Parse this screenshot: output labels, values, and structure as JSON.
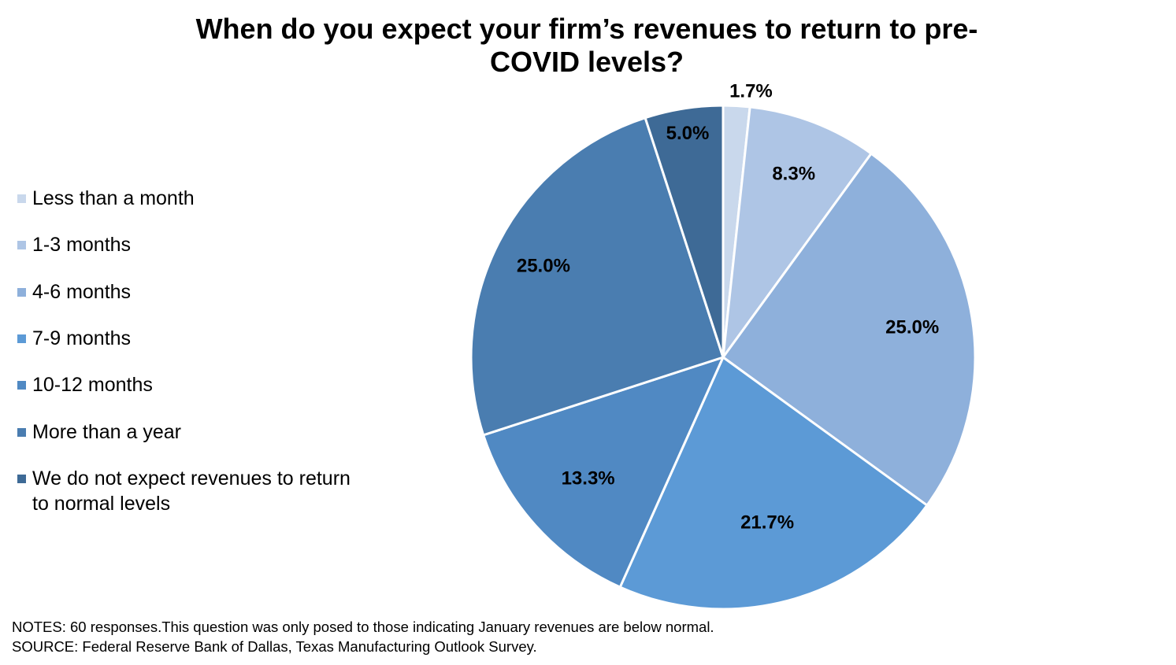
{
  "chart_data": {
    "type": "pie",
    "title": "When do you expect your firm’s revenues to return to pre-COVID levels?",
    "title_lines": [
      "When do you expect your firm’s revenues to return to pre-",
      "COVID levels?"
    ],
    "categories": [
      "Less than a month",
      "1-3 months",
      "4-6 months",
      "7-9 months",
      "10-12 months",
      "More than a year",
      "We do not expect revenues to return to normal levels"
    ],
    "values": [
      1.7,
      8.3,
      25.0,
      21.7,
      13.3,
      25.0,
      5.0
    ],
    "value_labels": [
      "1.7%",
      "8.3%",
      "25.0%",
      "21.7%",
      "13.3%",
      "25.0%",
      "5.0%"
    ],
    "colors": [
      "#C9D8EC",
      "#AEC5E5",
      "#8EB0DB",
      "#5C9AD6",
      "#5089C3",
      "#4A7DB0",
      "#3E6A96"
    ],
    "legend_position": "left",
    "start_angle": "12 o'clock",
    "direction": "clockwise"
  },
  "legend": {
    "items": [
      {
        "lines": [
          "Less than a month"
        ]
      },
      {
        "lines": [
          "1-3 months"
        ]
      },
      {
        "lines": [
          "4-6 months"
        ]
      },
      {
        "lines": [
          "7-9 months"
        ]
      },
      {
        "lines": [
          "10-12 months"
        ]
      },
      {
        "lines": [
          "More than a year"
        ]
      },
      {
        "lines": [
          "We do not expect revenues to return",
          "to normal levels"
        ]
      }
    ]
  },
  "notes": {
    "line1": "NOTES: 60 responses.This question was only posed to those indicating  January revenues  are below normal.",
    "line2": "SOURCE: Federal Reserve Bank of Dallas, Texas Manufacturing  Outlook Survey."
  }
}
